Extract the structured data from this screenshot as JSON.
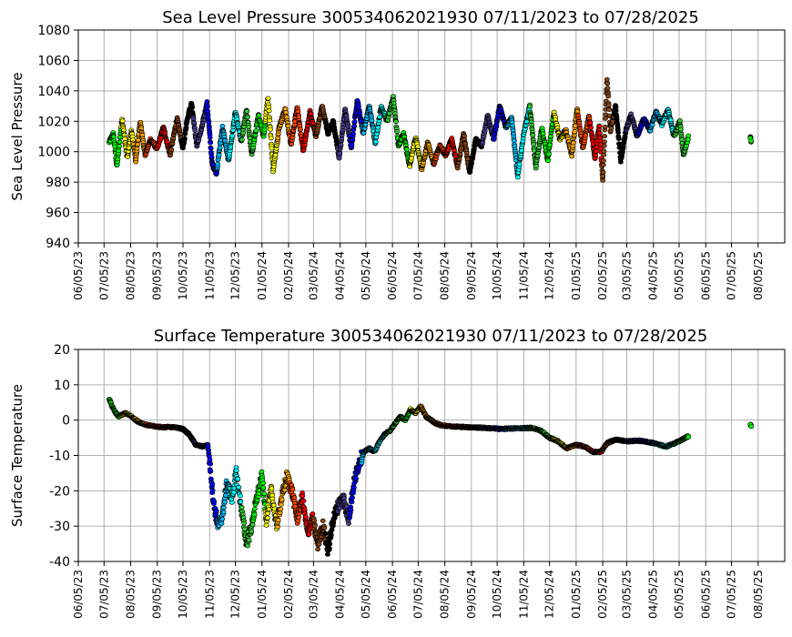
{
  "chart_data": [
    {
      "type": "scatter",
      "title": "Sea Level Pressure 300534062021930  07/11/2023 to 07/28/2025",
      "xlabel": "",
      "ylabel": "Sea Level Pressure",
      "ylim": [
        940,
        1080
      ],
      "yticks": [
        940,
        960,
        980,
        1000,
        1020,
        1040,
        1060,
        1080
      ],
      "xlim": [
        "2023-06-05",
        "2025-09-05"
      ],
      "xticks": [
        "06/05/23",
        "07/05/23",
        "08/05/23",
        "09/05/23",
        "10/05/23",
        "11/05/23",
        "12/05/23",
        "01/05/24",
        "02/05/24",
        "03/05/24",
        "04/05/24",
        "05/05/24",
        "06/05/24",
        "07/05/24",
        "08/05/24",
        "09/05/24",
        "10/05/24",
        "11/05/24",
        "12/05/24",
        "01/05/25",
        "02/05/25",
        "03/05/25",
        "04/05/25",
        "05/05/25",
        "06/05/25",
        "07/05/25",
        "08/05/25"
      ],
      "grid": true,
      "anchors": [
        [
          "2023-07-11",
          1006
        ],
        [
          "2023-07-16",
          1012
        ],
        [
          "2023-07-20",
          990
        ],
        [
          "2023-07-26",
          1022
        ],
        [
          "2023-08-01",
          996
        ],
        [
          "2023-08-06",
          1014
        ],
        [
          "2023-08-11",
          994
        ],
        [
          "2023-08-16",
          1020
        ],
        [
          "2023-08-22",
          998
        ],
        [
          "2023-08-28",
          1008
        ],
        [
          "2023-09-05",
          1002
        ],
        [
          "2023-09-12",
          1016
        ],
        [
          "2023-09-20",
          998
        ],
        [
          "2023-09-28",
          1022
        ],
        [
          "2023-10-05",
          1002
        ],
        [
          "2023-10-10",
          1022
        ],
        [
          "2023-10-15",
          1032
        ],
        [
          "2023-10-21",
          1004
        ],
        [
          "2023-10-27",
          1016
        ],
        [
          "2023-11-02",
          1032
        ],
        [
          "2023-11-08",
          992
        ],
        [
          "2023-11-13",
          986
        ],
        [
          "2023-11-20",
          1016
        ],
        [
          "2023-11-27",
          994
        ],
        [
          "2023-12-05",
          1026
        ],
        [
          "2023-12-12",
          1006
        ],
        [
          "2023-12-18",
          1028
        ],
        [
          "2023-12-24",
          998
        ],
        [
          "2024-01-01",
          1024
        ],
        [
          "2024-01-07",
          1010
        ],
        [
          "2024-01-12",
          1036
        ],
        [
          "2024-01-18",
          988
        ],
        [
          "2024-01-25",
          1016
        ],
        [
          "2024-02-01",
          1028
        ],
        [
          "2024-02-08",
          1004
        ],
        [
          "2024-02-15",
          1030
        ],
        [
          "2024-02-22",
          1000
        ],
        [
          "2024-03-01",
          1026
        ],
        [
          "2024-03-08",
          1010
        ],
        [
          "2024-03-15",
          1030
        ],
        [
          "2024-03-22",
          1012
        ],
        [
          "2024-03-28",
          1020
        ],
        [
          "2024-04-04",
          996
        ],
        [
          "2024-04-11",
          1028
        ],
        [
          "2024-04-18",
          1002
        ],
        [
          "2024-04-25",
          1034
        ],
        [
          "2024-05-02",
          1012
        ],
        [
          "2024-05-09",
          1030
        ],
        [
          "2024-05-16",
          1006
        ],
        [
          "2024-05-23",
          1030
        ],
        [
          "2024-05-30",
          1020
        ],
        [
          "2024-06-06",
          1036
        ],
        [
          "2024-06-12",
          1004
        ],
        [
          "2024-06-18",
          1012
        ],
        [
          "2024-06-25",
          990
        ],
        [
          "2024-07-02",
          1010
        ],
        [
          "2024-07-09",
          988
        ],
        [
          "2024-07-16",
          1006
        ],
        [
          "2024-07-23",
          992
        ],
        [
          "2024-07-30",
          1004
        ],
        [
          "2024-08-06",
          998
        ],
        [
          "2024-08-13",
          1008
        ],
        [
          "2024-08-20",
          990
        ],
        [
          "2024-08-27",
          1012
        ],
        [
          "2024-09-03",
          986
        ],
        [
          "2024-09-10",
          1008
        ],
        [
          "2024-09-17",
          1004
        ],
        [
          "2024-09-24",
          1024
        ],
        [
          "2024-10-01",
          1008
        ],
        [
          "2024-10-08",
          1030
        ],
        [
          "2024-10-15",
          1016
        ],
        [
          "2024-10-22",
          1022
        ],
        [
          "2024-10-29",
          984
        ],
        [
          "2024-11-05",
          1012
        ],
        [
          "2024-11-12",
          1030
        ],
        [
          "2024-11-19",
          990
        ],
        [
          "2024-11-26",
          1016
        ],
        [
          "2024-12-03",
          994
        ],
        [
          "2024-12-10",
          1026
        ],
        [
          "2024-12-17",
          1008
        ],
        [
          "2024-12-24",
          1014
        ],
        [
          "2024-12-31",
          998
        ],
        [
          "2025-01-06",
          1028
        ],
        [
          "2025-01-13",
          1002
        ],
        [
          "2025-01-20",
          1024
        ],
        [
          "2025-01-27",
          996
        ],
        [
          "2025-02-01",
          1018
        ],
        [
          "2025-02-05",
          980
        ],
        [
          "2025-02-10",
          1048
        ],
        [
          "2025-02-14",
          1014
        ],
        [
          "2025-02-20",
          1030
        ],
        [
          "2025-02-26",
          994
        ],
        [
          "2025-03-04",
          1014
        ],
        [
          "2025-03-10",
          1024
        ],
        [
          "2025-03-17",
          1010
        ],
        [
          "2025-03-25",
          1022
        ],
        [
          "2025-04-01",
          1014
        ],
        [
          "2025-04-08",
          1026
        ],
        [
          "2025-04-15",
          1018
        ],
        [
          "2025-04-22",
          1028
        ],
        [
          "2025-04-29",
          1010
        ],
        [
          "2025-05-06",
          1020
        ],
        [
          "2025-05-10",
          998
        ],
        [
          "2025-05-16",
          1010
        ],
        [
          "2025-07-27",
          1009
        ],
        [
          "2025-07-28",
          1007
        ]
      ]
    },
    {
      "type": "scatter",
      "title": "Surface Temperature 300534062021930  07/11/2023 to 07/28/2025",
      "xlabel": "",
      "ylabel": "Surface Temperature",
      "ylim": [
        -40,
        20
      ],
      "yticks": [
        -40,
        -30,
        -20,
        -10,
        0,
        10,
        20
      ],
      "xlim": [
        "2023-06-05",
        "2025-09-05"
      ],
      "xticks": [
        "06/05/23",
        "07/05/23",
        "08/05/23",
        "09/05/23",
        "10/05/23",
        "11/05/23",
        "12/05/23",
        "01/05/24",
        "02/05/24",
        "03/05/24",
        "04/05/24",
        "05/05/24",
        "06/05/24",
        "07/05/24",
        "08/05/24",
        "09/05/24",
        "10/05/24",
        "11/05/24",
        "12/05/24",
        "01/05/25",
        "02/05/25",
        "03/05/25",
        "04/05/25",
        "05/05/25",
        "06/05/25",
        "07/05/25",
        "08/05/25"
      ],
      "grid": true,
      "anchors": [
        [
          "2023-07-11",
          6
        ],
        [
          "2023-07-16",
          3
        ],
        [
          "2023-07-22",
          1
        ],
        [
          "2023-07-30",
          2
        ],
        [
          "2023-08-06",
          1
        ],
        [
          "2023-08-14",
          -0.5
        ],
        [
          "2023-08-25",
          -1.5
        ],
        [
          "2023-09-10",
          -2
        ],
        [
          "2023-09-25",
          -2
        ],
        [
          "2023-10-05",
          -2.5
        ],
        [
          "2023-10-12",
          -4
        ],
        [
          "2023-10-20",
          -7
        ],
        [
          "2023-10-28",
          -7.5
        ],
        [
          "2023-11-03",
          -7
        ],
        [
          "2023-11-06",
          -14
        ],
        [
          "2023-11-10",
          -24
        ],
        [
          "2023-11-15",
          -30
        ],
        [
          "2023-11-20",
          -27
        ],
        [
          "2023-11-25",
          -18
        ],
        [
          "2023-12-01",
          -22
        ],
        [
          "2023-12-06",
          -15
        ],
        [
          "2023-12-12",
          -25
        ],
        [
          "2023-12-18",
          -35
        ],
        [
          "2023-12-24",
          -30
        ],
        [
          "2023-12-30",
          -22
        ],
        [
          "2024-01-05",
          -16
        ],
        [
          "2024-01-10",
          -28
        ],
        [
          "2024-01-16",
          -20
        ],
        [
          "2024-01-22",
          -30
        ],
        [
          "2024-01-28",
          -22
        ],
        [
          "2024-02-03",
          -16
        ],
        [
          "2024-02-09",
          -20
        ],
        [
          "2024-02-15",
          -28
        ],
        [
          "2024-02-21",
          -22
        ],
        [
          "2024-02-27",
          -32
        ],
        [
          "2024-03-04",
          -28
        ],
        [
          "2024-03-10",
          -35
        ],
        [
          "2024-03-16",
          -30
        ],
        [
          "2024-03-22",
          -37
        ],
        [
          "2024-03-28",
          -28
        ],
        [
          "2024-04-03",
          -24
        ],
        [
          "2024-04-09",
          -22
        ],
        [
          "2024-04-15",
          -28
        ],
        [
          "2024-04-21",
          -18
        ],
        [
          "2024-04-27",
          -12
        ],
        [
          "2024-05-03",
          -9
        ],
        [
          "2024-05-09",
          -8
        ],
        [
          "2024-05-15",
          -9
        ],
        [
          "2024-05-21",
          -6
        ],
        [
          "2024-05-27",
          -4
        ],
        [
          "2024-06-02",
          -3
        ],
        [
          "2024-06-08",
          -1
        ],
        [
          "2024-06-14",
          1
        ],
        [
          "2024-06-20",
          0
        ],
        [
          "2024-06-26",
          3
        ],
        [
          "2024-07-02",
          2
        ],
        [
          "2024-07-08",
          4
        ],
        [
          "2024-07-14",
          1
        ],
        [
          "2024-07-20",
          0
        ],
        [
          "2024-07-26",
          -1
        ],
        [
          "2024-08-01",
          -1.5
        ],
        [
          "2024-08-15",
          -1.8
        ],
        [
          "2024-09-01",
          -2
        ],
        [
          "2024-09-20",
          -2.2
        ],
        [
          "2024-10-10",
          -2.5
        ],
        [
          "2024-10-30",
          -2.3
        ],
        [
          "2024-11-15",
          -2.2
        ],
        [
          "2024-11-25",
          -3
        ],
        [
          "2024-12-05",
          -5
        ],
        [
          "2024-12-15",
          -6
        ],
        [
          "2024-12-25",
          -8
        ],
        [
          "2025-01-05",
          -7
        ],
        [
          "2025-01-15",
          -7.5
        ],
        [
          "2025-01-25",
          -9
        ],
        [
          "2025-02-03",
          -9
        ],
        [
          "2025-02-10",
          -6.5
        ],
        [
          "2025-02-20",
          -5.5
        ],
        [
          "2025-03-05",
          -6
        ],
        [
          "2025-03-20",
          -5.8
        ],
        [
          "2025-04-05",
          -6.5
        ],
        [
          "2025-04-20",
          -7.5
        ],
        [
          "2025-05-05",
          -6
        ],
        [
          "2025-05-16",
          -4.5
        ],
        [
          "2025-07-27",
          -1.2
        ],
        [
          "2025-07-28",
          -1.8
        ]
      ]
    }
  ],
  "colors": {
    "palette": [
      "#00ff00",
      "#ffff00",
      "#ffa500",
      "#ff4500",
      "#ff0000",
      "#8b4513",
      "#000000",
      "#483d8b",
      "#0000ff",
      "#00bfff",
      "#00ffff",
      "#32cd32"
    ],
    "grid": "#b0b0b0",
    "marker_edge": "#000000"
  }
}
